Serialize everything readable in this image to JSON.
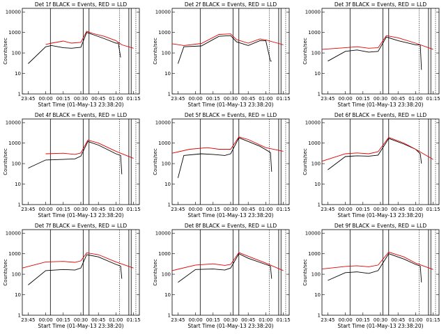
{
  "colors": {
    "events": "#000000",
    "lld": "#e00000",
    "axis": "#000000",
    "background": "#ffffff"
  },
  "chart_data": [
    {
      "type": "line",
      "title": "Det 1f BLACK = Events, RED = LLD",
      "xlabel": "Start Time (01-May-13 23:38:20)",
      "ylabel": "Counts/sec",
      "yscale": "log",
      "ylim": [
        1,
        15000
      ],
      "xticks": [
        "23:45",
        "00:00",
        "00:15",
        "00:30",
        "00:45",
        "01:00",
        "01:15"
      ],
      "yticks": [
        "1",
        "10",
        "100",
        "1000",
        "10000"
      ],
      "series": [
        {
          "name": "Events",
          "x": [
            "23:45",
            "00:00",
            "00:05",
            "00:15",
            "00:22",
            "00:30",
            "00:35",
            "00:40",
            "00:50",
            "01:00",
            "01:02",
            "01:04"
          ],
          "y": [
            30,
            200,
            230,
            180,
            170,
            190,
            1000,
            800,
            500,
            300,
            300,
            60
          ]
        },
        {
          "name": "LLD",
          "x": [
            "00:00",
            "00:05",
            "00:15",
            "00:22",
            "00:30",
            "00:35",
            "00:40",
            "00:50",
            "01:00",
            "01:05",
            "01:15"
          ],
          "y": [
            260,
            300,
            380,
            300,
            330,
            1150,
            900,
            650,
            400,
            250,
            170
          ]
        }
      ]
    },
    {
      "type": "line",
      "title": "Det 2f BLACK = Events, RED = LLD",
      "xlabel": "Start Time (01-May-13 23:38:20)",
      "ylabel": "Counts/sec",
      "yscale": "log",
      "ylim": [
        1,
        15000
      ],
      "xticks": [
        "23:45",
        "00:00",
        "00:15",
        "00:30",
        "00:45",
        "01:00",
        "01:15"
      ],
      "yticks": [
        "1",
        "10",
        "100",
        "1000",
        "10000"
      ],
      "series": [
        {
          "name": "Events",
          "x": [
            "23:45",
            "23:50",
            "00:05",
            "00:20",
            "00:30",
            "00:35",
            "00:45",
            "00:55",
            "01:00",
            "01:04",
            "01:05"
          ],
          "y": [
            30,
            200,
            220,
            650,
            700,
            350,
            230,
            400,
            400,
            40,
            40
          ]
        },
        {
          "name": "LLD",
          "x": [
            "23:40",
            "23:50",
            "00:05",
            "00:20",
            "00:30",
            "00:35",
            "00:45",
            "00:55",
            "01:00",
            "01:10",
            "01:15"
          ],
          "y": [
            280,
            230,
            290,
            800,
            850,
            450,
            300,
            480,
            430,
            300,
            250
          ]
        }
      ]
    },
    {
      "type": "line",
      "title": "Det 3f BLACK = Events, RED = LLD",
      "xlabel": "Start Time (01-May-13 23:38:20)",
      "ylabel": "Counts/sec",
      "yscale": "log",
      "ylim": [
        1,
        15000
      ],
      "xticks": [
        "23:45",
        "00:00",
        "00:15",
        "00:30",
        "00:45",
        "01:00",
        "01:15"
      ],
      "yticks": [
        "1",
        "10",
        "100",
        "1000",
        "10000"
      ],
      "series": [
        {
          "name": "Events",
          "x": [
            "23:45",
            "00:00",
            "00:10",
            "00:20",
            "00:28",
            "00:35",
            "00:45",
            "01:00",
            "01:04",
            "01:05"
          ],
          "y": [
            40,
            120,
            140,
            110,
            120,
            600,
            400,
            250,
            250,
            15
          ]
        },
        {
          "name": "LLD",
          "x": [
            "23:40",
            "00:00",
            "00:10",
            "00:20",
            "00:28",
            "00:35",
            "00:45",
            "01:00",
            "01:15"
          ],
          "y": [
            150,
            180,
            200,
            170,
            180,
            700,
            550,
            300,
            150
          ]
        }
      ]
    },
    {
      "type": "line",
      "title": "Det 4f BLACK = Events, RED = LLD",
      "xlabel": "Start Time (01-May-13 23:38:20)",
      "ylabel": "Counts/sec",
      "yscale": "log",
      "ylim": [
        1,
        15000
      ],
      "xticks": [
        "23:45",
        "00:00",
        "00:15",
        "00:30",
        "00:45",
        "01:00",
        "01:15"
      ],
      "yticks": [
        "1",
        "10",
        "100",
        "1000",
        "10000"
      ],
      "series": [
        {
          "name": "Events",
          "x": [
            "23:45",
            "00:00",
            "00:15",
            "00:25",
            "00:30",
            "00:36",
            "00:45",
            "01:00",
            "01:04",
            "01:05"
          ],
          "y": [
            60,
            150,
            160,
            170,
            230,
            1200,
            800,
            300,
            250,
            30
          ]
        },
        {
          "name": "LLD",
          "x": [
            "00:00",
            "00:15",
            "00:25",
            "00:30",
            "00:36",
            "00:45",
            "01:00",
            "01:15"
          ],
          "y": [
            300,
            320,
            280,
            330,
            1400,
            1000,
            400,
            180
          ]
        }
      ]
    },
    {
      "type": "line",
      "title": "Det 5f BLACK = Events, RED = LLD",
      "xlabel": "Start Time (01-May-13 23:38:20)",
      "ylabel": "Counts/sec",
      "yscale": "log",
      "ylim": [
        1,
        15000
      ],
      "xticks": [
        "23:45",
        "00:00",
        "00:15",
        "00:30",
        "00:45",
        "01:00",
        "01:15"
      ],
      "yticks": [
        "1",
        "10",
        "100",
        "1000",
        "10000"
      ],
      "series": [
        {
          "name": "Events",
          "x": [
            "23:45",
            "23:50",
            "00:05",
            "00:15",
            "00:25",
            "00:30",
            "00:37",
            "00:45",
            "00:55",
            "01:04",
            "01:05"
          ],
          "y": [
            20,
            250,
            300,
            280,
            250,
            300,
            1800,
            1200,
            700,
            350,
            40
          ]
        },
        {
          "name": "LLD",
          "x": [
            "23:40",
            "23:55",
            "00:10",
            "00:20",
            "00:30",
            "00:37",
            "00:45",
            "01:00",
            "01:15"
          ],
          "y": [
            320,
            500,
            600,
            500,
            500,
            2000,
            1500,
            600,
            400
          ]
        }
      ]
    },
    {
      "type": "line",
      "title": "Det 6f BLACK = Events, RED = LLD",
      "xlabel": "Start Time (01-May-13 23:38:20)",
      "ylabel": "Counts/sec",
      "yscale": "log",
      "ylim": [
        1,
        15000
      ],
      "xticks": [
        "23:45",
        "00:00",
        "00:15",
        "00:30",
        "00:45",
        "01:00",
        "01:15"
      ],
      "yticks": [
        "1",
        "10",
        "100",
        "1000",
        "10000"
      ],
      "series": [
        {
          "name": "Events",
          "x": [
            "23:45",
            "00:00",
            "00:10",
            "00:20",
            "00:28",
            "00:37",
            "00:50",
            "01:00",
            "01:04",
            "01:05"
          ],
          "y": [
            50,
            220,
            240,
            230,
            260,
            1700,
            900,
            500,
            300,
            100
          ]
        },
        {
          "name": "LLD",
          "x": [
            "23:40",
            "00:00",
            "00:10",
            "00:20",
            "00:28",
            "00:37",
            "00:50",
            "01:00",
            "01:15"
          ],
          "y": [
            130,
            300,
            330,
            300,
            380,
            1900,
            1000,
            500,
            160
          ]
        }
      ]
    },
    {
      "type": "line",
      "title": "Det 7f BLACK = Events, RED = LLD",
      "xlabel": "Start Time (01-May-13 23:38:20)",
      "ylabel": "Counts/sec",
      "yscale": "log",
      "ylim": [
        1,
        15000
      ],
      "xticks": [
        "23:45",
        "00:00",
        "00:15",
        "00:30",
        "00:45",
        "01:00",
        "01:15"
      ],
      "yticks": [
        "1",
        "10",
        "100",
        "1000",
        "10000"
      ],
      "series": [
        {
          "name": "Events",
          "x": [
            "23:45",
            "00:00",
            "00:15",
            "00:25",
            "00:30",
            "00:35",
            "00:45",
            "01:00",
            "01:04",
            "01:05"
          ],
          "y": [
            30,
            150,
            170,
            160,
            200,
            900,
            700,
            300,
            250,
            60
          ]
        },
        {
          "name": "LLD",
          "x": [
            "23:40",
            "00:00",
            "00:15",
            "00:25",
            "00:30",
            "00:35",
            "00:45",
            "01:00",
            "01:15"
          ],
          "y": [
            200,
            400,
            420,
            380,
            450,
            1100,
            900,
            400,
            200
          ]
        }
      ]
    },
    {
      "type": "line",
      "title": "Det 8f BLACK = Events, RED = LLD",
      "xlabel": "Start Time (01-May-13 23:38:20)",
      "ylabel": "Counts/sec",
      "yscale": "log",
      "ylim": [
        1,
        15000
      ],
      "xticks": [
        "23:45",
        "00:00",
        "00:15",
        "00:30",
        "00:45",
        "01:00",
        "01:15"
      ],
      "yticks": [
        "1",
        "10",
        "100",
        "1000",
        "10000"
      ],
      "series": [
        {
          "name": "Events",
          "x": [
            "23:45",
            "00:00",
            "00:15",
            "00:25",
            "00:30",
            "00:37",
            "00:45",
            "01:00",
            "01:04",
            "01:05"
          ],
          "y": [
            40,
            170,
            180,
            160,
            200,
            1000,
            600,
            300,
            250,
            60
          ]
        },
        {
          "name": "LLD",
          "x": [
            "23:40",
            "00:00",
            "00:15",
            "00:25",
            "00:30",
            "00:37",
            "00:45",
            "01:00",
            "01:15"
          ],
          "y": [
            150,
            280,
            320,
            270,
            300,
            1150,
            750,
            350,
            150
          ]
        }
      ]
    },
    {
      "type": "line",
      "title": "Det 9f BLACK = Events, RED = LLD",
      "xlabel": "Start Time (01-May-13 23:38:20)",
      "ylabel": "Counts/sec",
      "yscale": "log",
      "ylim": [
        1,
        15000
      ],
      "xticks": [
        "23:45",
        "00:00",
        "00:15",
        "00:30",
        "00:45",
        "01:00",
        "01:15"
      ],
      "yticks": [
        "1",
        "10",
        "100",
        "1000",
        "10000"
      ],
      "series": [
        {
          "name": "Events",
          "x": [
            "23:45",
            "00:00",
            "00:10",
            "00:20",
            "00:28",
            "00:37",
            "00:50",
            "01:00",
            "01:04",
            "01:05"
          ],
          "y": [
            50,
            120,
            130,
            110,
            150,
            1000,
            550,
            300,
            250,
            40
          ]
        },
        {
          "name": "LLD",
          "x": [
            "23:40",
            "00:00",
            "00:10",
            "00:20",
            "00:28",
            "00:37",
            "00:50",
            "01:00",
            "01:15"
          ],
          "y": [
            180,
            240,
            260,
            230,
            280,
            1200,
            700,
            350,
            170
          ]
        }
      ]
    }
  ]
}
